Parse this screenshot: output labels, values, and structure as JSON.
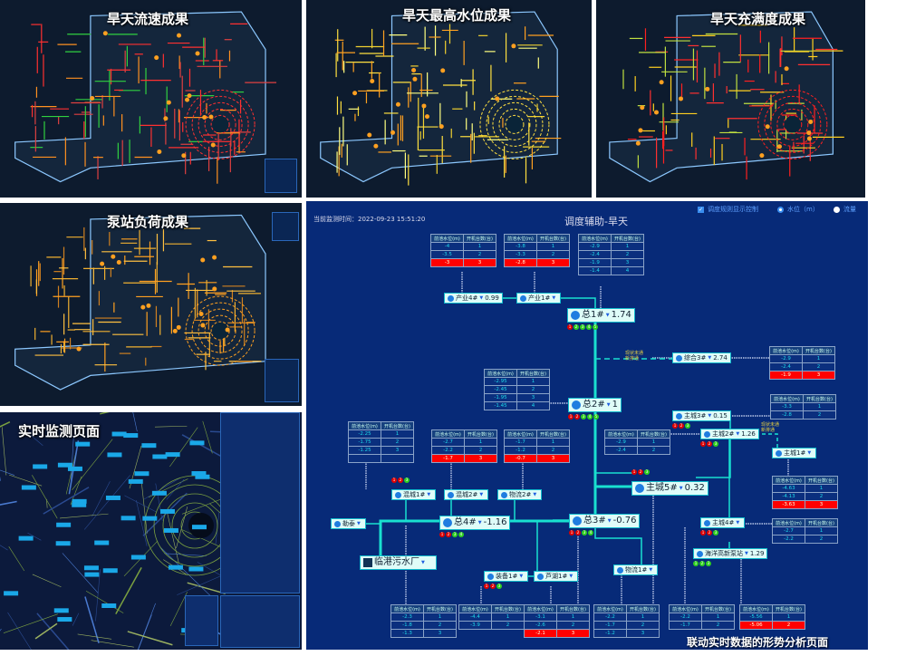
{
  "maps": [
    {
      "title": "旱天流速成果",
      "palette": [
        "#ff3030",
        "#ff9020",
        "#30d040",
        "#e04040"
      ]
    },
    {
      "title": "旱天最高水位成果",
      "palette": [
        "#ffe040",
        "#f0d030",
        "#ffa020",
        "#ffff80"
      ]
    },
    {
      "title": "旱天充满度成果",
      "palette": [
        "#ff2020",
        "#ff3030",
        "#ffd020",
        "#c0e040"
      ]
    },
    {
      "title": "泵站负荷成果",
      "palette": [
        "#ffa020",
        "#f0b030",
        "#ffc040",
        "#d08020"
      ]
    },
    {
      "title": "实时监测页面",
      "palette": [
        "#7aa040",
        "#4a7ad0",
        "#2a4a90",
        "#9ab060"
      ]
    }
  ],
  "diagram": {
    "monitor_time": "当前监测时间：2022-09-23 15:51:20",
    "title": "调度辅助-旱天",
    "rule_checkbox": "调度规则显示控制",
    "radio_water": "水位（m）",
    "radio_flow": "流量",
    "caption": "联动实时数据的形势分析页面",
    "table_headers": [
      "前池水位(m)",
      "开机台数(台)"
    ],
    "tables": [
      {
        "rows": [
          [
            "-4",
            "1"
          ],
          [
            "-3.5",
            "2"
          ],
          [
            "-3",
            "3"
          ]
        ],
        "alert_row": 2
      },
      {
        "rows": [
          [
            "-3.8",
            "1"
          ],
          [
            "-3.3",
            "2"
          ],
          [
            "-2.8",
            "3"
          ]
        ],
        "alert_row": 2
      },
      {
        "rows": [
          [
            "-2.9",
            "1"
          ],
          [
            "-2.4",
            "2"
          ],
          [
            "-1.9",
            "3"
          ],
          [
            "-1.4",
            "4"
          ]
        ],
        "alert_row": null
      },
      {
        "rows": [
          [
            "-2.9",
            "1"
          ],
          [
            "-2.4",
            "2"
          ],
          [
            "-1.9",
            "3"
          ]
        ],
        "alert_row": 2
      },
      {
        "rows": [
          [
            "-2.95",
            "1"
          ],
          [
            "-2.45",
            "2"
          ],
          [
            "-1.95",
            "3"
          ],
          [
            "-1.45",
            "4"
          ]
        ],
        "alert_row": null
      },
      {
        "rows": [
          [
            "-2.25",
            "1"
          ],
          [
            "-1.75",
            "2"
          ],
          [
            "-1.25",
            "3"
          ],
          [
            "",
            ""
          ]
        ],
        "alert_row": null
      },
      {
        "rows": [
          [
            "-2.7",
            "1"
          ],
          [
            "-2.2",
            "2"
          ],
          [
            "-1.7",
            "3"
          ]
        ],
        "alert_row": 2
      },
      {
        "rows": [
          [
            "-1.7",
            "1"
          ],
          [
            "-1.2",
            "2"
          ],
          [
            "-0.7",
            "3"
          ]
        ],
        "alert_row": 2
      },
      {
        "rows": [
          [
            "-2.9",
            "1"
          ],
          [
            "-2.4",
            "2"
          ]
        ],
        "alert_row": null
      },
      {
        "rows": [
          [
            "-3.3",
            "1"
          ],
          [
            "-2.8",
            "2"
          ]
        ],
        "alert_row": null
      },
      {
        "rows": [
          [
            "-4.63",
            "1"
          ],
          [
            "-4.13",
            "2"
          ],
          [
            "-3.63",
            "3"
          ]
        ],
        "alert_row": 2
      },
      {
        "rows": [
          [
            "-2.7",
            "1"
          ],
          [
            "-2.2",
            "2"
          ]
        ],
        "alert_row": null
      },
      {
        "rows": [
          [
            "-2.3",
            "1"
          ],
          [
            "-1.8",
            "2"
          ],
          [
            "-1.3",
            "3"
          ]
        ],
        "alert_row": null
      },
      {
        "rows": [
          [
            "-4.4",
            "1"
          ],
          [
            "-3.9",
            "2"
          ]
        ],
        "alert_row": null
      },
      {
        "rows": [
          [
            "-3.1",
            "1"
          ],
          [
            "-2.6",
            "2"
          ],
          [
            "-2.1",
            "3"
          ]
        ],
        "alert_row": 2
      },
      {
        "rows": [
          [
            "-2.2",
            "1"
          ],
          [
            "-1.7",
            "2"
          ],
          [
            "-1.2",
            "3"
          ]
        ],
        "alert_row": null
      },
      {
        "rows": [
          [
            "-2.2",
            "1"
          ],
          [
            "-1.7",
            "2"
          ]
        ],
        "alert_row": null
      },
      {
        "rows": [
          [
            "-5.56",
            "1"
          ],
          [
            "-5.06",
            "2"
          ]
        ],
        "alert_row": 1
      }
    ],
    "nodes": [
      {
        "name": "产业4#",
        "value": "0.99"
      },
      {
        "name": "产业1#",
        "value": ""
      },
      {
        "name": "总1#",
        "value": "1.74",
        "big": true,
        "lights": [
          "r",
          "g",
          "g",
          "g",
          "g"
        ]
      },
      {
        "name": "综合3#",
        "value": "2.74"
      },
      {
        "name": "总2#",
        "value": "1",
        "big": true,
        "lights": [
          "r",
          "r",
          "g",
          "g",
          "g"
        ]
      },
      {
        "name": "主城3#",
        "value": "0.15",
        "lights": [
          "r",
          "r",
          "g"
        ]
      },
      {
        "name": "主城2#",
        "value": "1.26",
        "lights": [
          "r",
          "r",
          "g"
        ]
      },
      {
        "name": "主城1#",
        "value": ""
      },
      {
        "name": "主城5#",
        "value": "0.32",
        "big": true,
        "lights": [
          "r",
          "r",
          "g"
        ]
      },
      {
        "name": "混城1#",
        "value": "",
        "lights": [
          "r",
          "r",
          "g"
        ]
      },
      {
        "name": "混城2#",
        "value": ""
      },
      {
        "name": "物流2#",
        "value": ""
      },
      {
        "name": "勒泰",
        "value": ""
      },
      {
        "name": "总4#",
        "value": "-1.16",
        "big": true,
        "lights": [
          "r",
          "r",
          "g",
          "g"
        ]
      },
      {
        "name": "总3#",
        "value": "-0.76",
        "big": true,
        "lights": [
          "r",
          "r",
          "g",
          "g"
        ]
      },
      {
        "name": "主城4#",
        "value": "",
        "lights": [
          "r",
          "r",
          "g"
        ]
      },
      {
        "name": "海洋高新泵站",
        "value": "1.29",
        "lights": [
          "g",
          "g",
          "g"
        ]
      },
      {
        "name": "临港污水厂",
        "value": "",
        "big": true,
        "plant": true
      },
      {
        "name": "装备1#",
        "value": "",
        "lights": [
          "r",
          "r",
          "g"
        ]
      },
      {
        "name": "芦湖1#",
        "value": ""
      },
      {
        "name": "物流1#",
        "value": ""
      }
    ],
    "notes": [
      [
        "现状未通",
        "新排通"
      ],
      [
        "现状未通",
        "新排通"
      ]
    ],
    "colors": {
      "background": "#072a78",
      "pipe": "#19e0d0",
      "alert": "#ff0000",
      "light_on": "#30d020",
      "light_off": "#e00000"
    }
  }
}
